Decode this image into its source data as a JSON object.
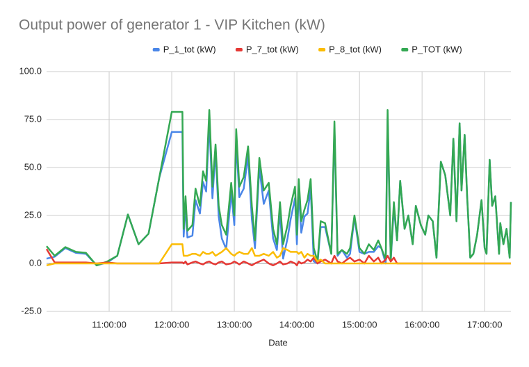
{
  "chart_data": {
    "type": "line",
    "title": "Output power of generator 1 - VIP Kitchen (kW)",
    "x_label": "Date",
    "x": [
      10.0,
      10.13,
      10.3,
      10.47,
      10.63,
      10.8,
      10.97,
      11.13,
      11.3,
      11.47,
      11.63,
      11.8,
      12.0,
      12.17,
      12.19,
      12.22,
      12.25,
      12.33,
      12.38,
      12.45,
      12.5,
      12.55,
      12.6,
      12.65,
      12.7,
      12.75,
      12.8,
      12.87,
      12.95,
      13.0,
      13.03,
      13.08,
      13.15,
      13.22,
      13.28,
      13.33,
      13.4,
      13.47,
      13.55,
      13.62,
      13.68,
      13.73,
      13.78,
      13.85,
      13.9,
      13.97,
      14.0,
      14.03,
      14.07,
      14.12,
      14.17,
      14.22,
      14.27,
      14.33,
      14.38,
      14.45,
      14.55,
      14.6,
      14.65,
      14.72,
      14.8,
      14.85,
      14.92,
      15.0,
      15.08,
      15.15,
      15.23,
      15.3,
      15.35,
      15.42,
      15.45,
      15.5,
      15.55,
      15.6,
      15.65,
      15.72,
      15.78,
      15.85,
      15.9,
      15.98,
      16.05,
      16.1,
      16.17,
      16.23,
      16.3,
      16.37,
      16.45,
      16.5,
      16.55,
      16.6,
      16.63,
      16.68,
      16.72,
      16.77,
      16.82,
      16.88,
      16.95,
      17.0,
      17.03,
      17.08,
      17.12,
      17.17,
      17.23,
      17.25,
      17.3,
      17.35,
      17.4,
      17.42
    ],
    "series": [
      {
        "name": "P_1_tot (kW)",
        "color": "#4a86e8",
        "values": [
          2.5,
          3.5,
          8,
          5.5,
          5,
          -1,
          0.5,
          4,
          25.5,
          10,
          15.5,
          44.5,
          68.5,
          68.5,
          14,
          30,
          13.5,
          14.5,
          33,
          26,
          42.5,
          37.5,
          74,
          34,
          58.5,
          24.5,
          13,
          7.5,
          37,
          20,
          64.5,
          34.5,
          39,
          56,
          23,
          8,
          50,
          31,
          38,
          13,
          7,
          27,
          2.5,
          13,
          23,
          34,
          10,
          38,
          16,
          24.5,
          26,
          39,
          1,
          0,
          19,
          19,
          5,
          70,
          4,
          7,
          3,
          5,
          24,
          6,
          5,
          6,
          6,
          9,
          8,
          0,
          76,
          1,
          29,
          12,
          43,
          18,
          25,
          10,
          30,
          20,
          15,
          25,
          22,
          3,
          53,
          46,
          25,
          65,
          22,
          73,
          38,
          67,
          35,
          3,
          5,
          15,
          33,
          8,
          5,
          54,
          30,
          35,
          5,
          21,
          10,
          18,
          3,
          32
        ]
      },
      {
        "name": "P_7_tot (kW)",
        "color": "#e53935",
        "values": [
          7.5,
          0.5,
          0.5,
          0.5,
          0.5,
          0,
          0.5,
          0,
          0,
          0,
          0,
          0,
          0.5,
          0.5,
          0,
          1,
          -0.5,
          0.5,
          1,
          0,
          -0.5,
          0.5,
          1,
          0,
          -0.5,
          0.5,
          1,
          -0.5,
          0,
          1,
          0.5,
          -0.5,
          1,
          0,
          -1,
          0,
          1,
          2,
          0,
          -1,
          0,
          1,
          -0.5,
          0,
          1,
          0,
          -1,
          1,
          0,
          0.5,
          2,
          1,
          3,
          0,
          1,
          2,
          0,
          4,
          1,
          0,
          2,
          3,
          1,
          2,
          0,
          4,
          1,
          3,
          0,
          2,
          4,
          1,
          3,
          0,
          0,
          0,
          0,
          0,
          0,
          0,
          0,
          0,
          0,
          0,
          0,
          0,
          0,
          0,
          0,
          0,
          0,
          0,
          0,
          0,
          0,
          0,
          0,
          0,
          0,
          0,
          0,
          0,
          0,
          0,
          0,
          0,
          0,
          0
        ]
      },
      {
        "name": "P_8_tot (kW)",
        "color": "#fbbc04",
        "values": [
          -1,
          0,
          0,
          0,
          0,
          0,
          0,
          0,
          0,
          0,
          0,
          0,
          10,
          10,
          4,
          4,
          4,
          5,
          5,
          4,
          6,
          5,
          5,
          6,
          4,
          5,
          6,
          8,
          5,
          4,
          5,
          6,
          5,
          5,
          8,
          4,
          4,
          5,
          4,
          6,
          3,
          4,
          8,
          7,
          6,
          6,
          6,
          5,
          6,
          3,
          5,
          4,
          4,
          1,
          2,
          0,
          0,
          0,
          0,
          0,
          0,
          0,
          0,
          0,
          0,
          0,
          0,
          0,
          0,
          0,
          0,
          0,
          0,
          0,
          0,
          0,
          0,
          0,
          0,
          0,
          0,
          0,
          0,
          0,
          0,
          0,
          0,
          0,
          0,
          0,
          0,
          0,
          0,
          0,
          0,
          0,
          0,
          0,
          0,
          0,
          0,
          0,
          0,
          0,
          0,
          0,
          0,
          0
        ]
      },
      {
        "name": "P_TOT (kW)",
        "color": "#34a853",
        "values": [
          9,
          4,
          8.5,
          6,
          5.5,
          -1,
          1,
          4,
          25.5,
          10,
          15.5,
          44.5,
          79,
          79,
          18,
          35,
          17,
          20,
          39,
          30,
          48,
          43,
          80,
          40,
          62,
          30,
          20,
          15,
          42,
          25,
          70,
          40,
          45,
          61,
          30,
          12,
          55,
          38,
          42,
          18,
          10,
          32,
          10,
          20,
          30,
          40,
          15,
          44,
          22,
          28,
          33,
          44,
          8,
          1,
          22,
          21,
          5,
          74,
          5,
          7,
          5,
          8,
          25,
          8,
          5,
          10,
          7,
          12,
          8,
          2,
          80,
          2,
          32,
          12,
          43,
          18,
          25,
          10,
          30,
          20,
          15,
          25,
          22,
          3,
          53,
          46,
          25,
          65,
          22,
          73,
          38,
          67,
          35,
          3,
          5,
          15,
          33,
          8,
          5,
          54,
          30,
          35,
          5,
          21,
          10,
          18,
          3,
          32
        ]
      }
    ],
    "xlim": [
      10.0,
      17.42
    ],
    "xticks": [
      {
        "value": 11,
        "label": "11:00:00"
      },
      {
        "value": 12,
        "label": "12:00:00"
      },
      {
        "value": 13,
        "label": "13:00:00"
      },
      {
        "value": 14,
        "label": "14:00:00"
      },
      {
        "value": 15,
        "label": "15:00:00"
      },
      {
        "value": 16,
        "label": "16:00:00"
      },
      {
        "value": 17,
        "label": "17:00:00"
      }
    ],
    "ylim": [
      -25,
      100
    ],
    "yticks": [
      {
        "value": -25,
        "label": "-25.0"
      },
      {
        "value": 0,
        "label": "0.0"
      },
      {
        "value": 25,
        "label": "25.0"
      },
      {
        "value": 50,
        "label": "50.0"
      },
      {
        "value": 75,
        "label": "75.0"
      },
      {
        "value": 100,
        "label": "100.0"
      }
    ],
    "grid": true,
    "legend": "top"
  }
}
